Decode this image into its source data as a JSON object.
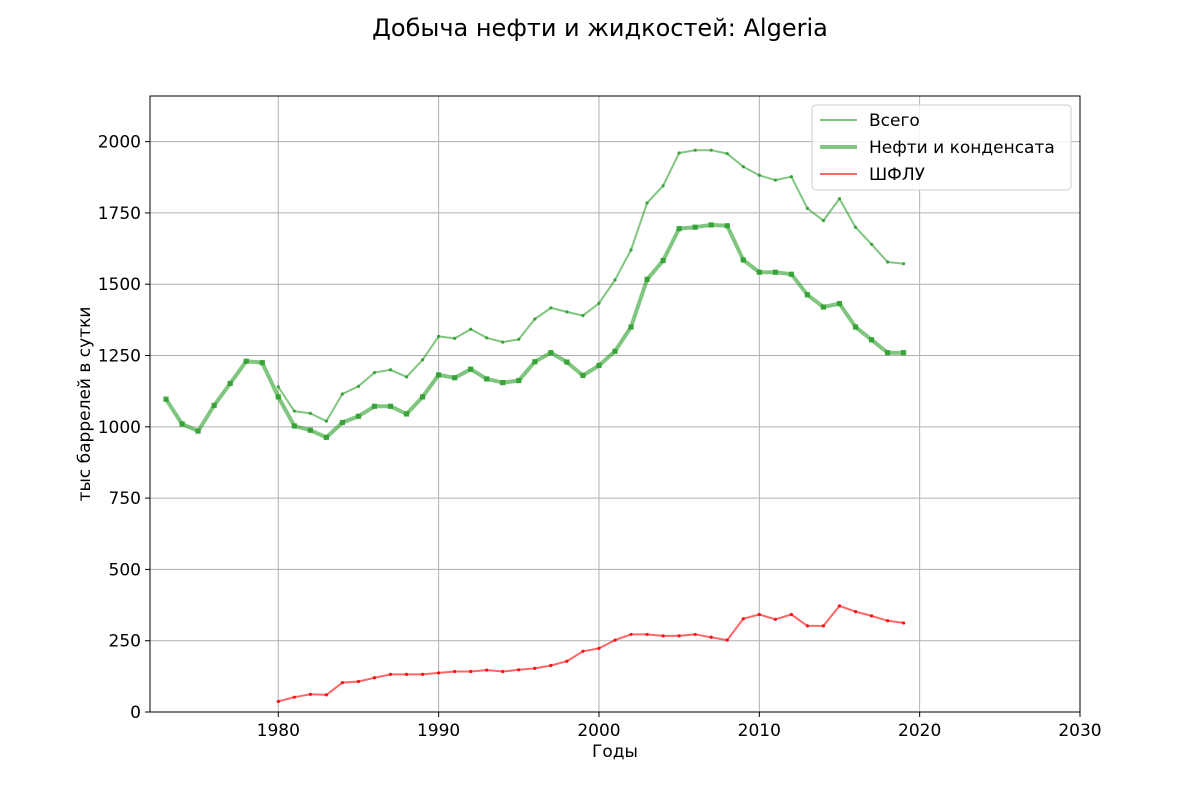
{
  "chart_data": {
    "type": "line",
    "title": "Добыча нефти и жидкостей: Algeria",
    "xlabel": "Годы",
    "ylabel": "тыс баррелей в сутки",
    "xlim": [
      1972,
      2030
    ],
    "ylim": [
      0,
      2160
    ],
    "xticks": [
      1980,
      1990,
      2000,
      2010,
      2020,
      2030
    ],
    "yticks": [
      0,
      250,
      500,
      750,
      1000,
      1250,
      1500,
      1750,
      2000
    ],
    "grid": true,
    "legend_position": "top-right",
    "series": [
      {
        "name": "Всего",
        "color": "#2ca02c",
        "x": [
          1980,
          1981,
          1982,
          1983,
          1984,
          1985,
          1986,
          1987,
          1988,
          1989,
          1990,
          1991,
          1992,
          1993,
          1994,
          1995,
          1996,
          1997,
          1998,
          1999,
          2000,
          2001,
          2002,
          2003,
          2004,
          2005,
          2006,
          2007,
          2008,
          2009,
          2010,
          2011,
          2012,
          2013,
          2014,
          2015,
          2016,
          2017,
          2018,
          2019
        ],
        "values": [
          1140,
          1055,
          1047,
          1020,
          1115,
          1142,
          1190,
          1200,
          1175,
          1235,
          1317,
          1310,
          1342,
          1312,
          1297,
          1307,
          1378,
          1417,
          1403,
          1390,
          1433,
          1515,
          1620,
          1785,
          1845,
          1960,
          1970,
          1970,
          1958,
          1912,
          1882,
          1865,
          1877,
          1766,
          1723,
          1800,
          1700,
          1640,
          1578,
          1572
        ]
      },
      {
        "name": "Нефти и конденсата",
        "color": "#2ca02c",
        "x": [
          1973,
          1974,
          1975,
          1976,
          1977,
          1978,
          1979,
          1980,
          1981,
          1982,
          1983,
          1984,
          1985,
          1986,
          1987,
          1988,
          1989,
          1990,
          1991,
          1992,
          1993,
          1994,
          1995,
          1996,
          1997,
          1998,
          1999,
          2000,
          2001,
          2002,
          2003,
          2004,
          2005,
          2006,
          2007,
          2008,
          2009,
          2010,
          2011,
          2012,
          2013,
          2014,
          2015,
          2016,
          2017,
          2018,
          2019
        ],
        "values": [
          1097,
          1010,
          985,
          1075,
          1152,
          1230,
          1225,
          1105,
          1003,
          988,
          963,
          1015,
          1037,
          1072,
          1072,
          1045,
          1105,
          1182,
          1172,
          1202,
          1168,
          1155,
          1162,
          1228,
          1260,
          1227,
          1180,
          1215,
          1265,
          1350,
          1517,
          1583,
          1695,
          1700,
          1708,
          1705,
          1585,
          1542,
          1542,
          1535,
          1463,
          1420,
          1432,
          1350,
          1305,
          1260,
          1260
        ]
      },
      {
        "name": "ШФЛУ",
        "color": "#ff0000",
        "x": [
          1980,
          1981,
          1982,
          1983,
          1984,
          1985,
          1986,
          1987,
          1988,
          1989,
          1990,
          1991,
          1992,
          1993,
          1994,
          1995,
          1996,
          1997,
          1998,
          1999,
          2000,
          2001,
          2002,
          2003,
          2004,
          2005,
          2006,
          2007,
          2008,
          2009,
          2010,
          2011,
          2012,
          2013,
          2014,
          2015,
          2016,
          2017,
          2018,
          2019
        ],
        "values": [
          37,
          52,
          62,
          60,
          103,
          107,
          120,
          132,
          132,
          132,
          137,
          142,
          142,
          147,
          142,
          148,
          153,
          163,
          178,
          213,
          223,
          252,
          272,
          272,
          267,
          267,
          272,
          262,
          252,
          327,
          342,
          325,
          342,
          302,
          302,
          372,
          352,
          337,
          320,
          312
        ]
      }
    ]
  }
}
